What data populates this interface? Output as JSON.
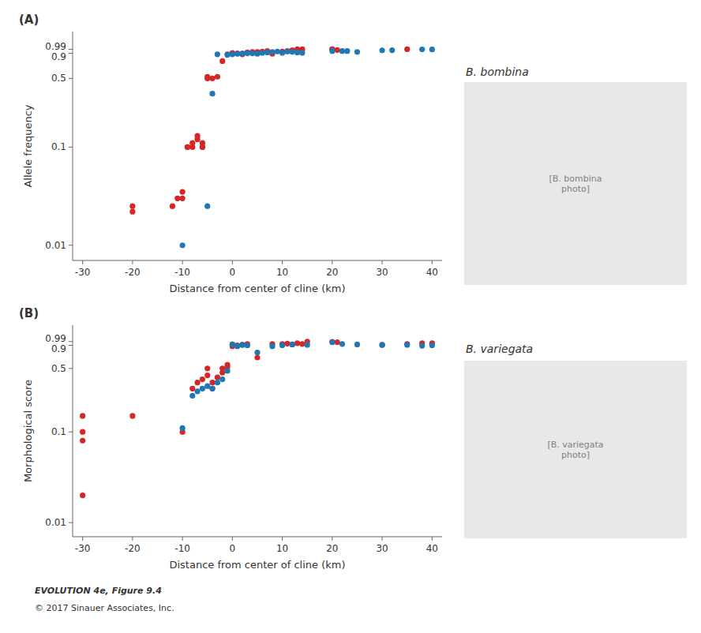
{
  "chart_data": [
    {
      "type": "scatter",
      "title": "(A)",
      "xlabel": "Distance from center of cline (km)",
      "ylabel": "Allele frequency",
      "log": "y",
      "grid": false,
      "xlim": [
        -32,
        42
      ],
      "xticks": [
        -30,
        -20,
        -10,
        0,
        10,
        20,
        30,
        40
      ],
      "ylim": [
        0.007,
        1.5
      ],
      "yticks": [
        0.01,
        0.1,
        0.5,
        0.9,
        0.99
      ],
      "series": [
        {
          "color": "#d62728",
          "x": [
            -20,
            -20,
            -12,
            -11,
            -10,
            -10,
            -9,
            -9,
            -8,
            -8,
            -7,
            -7,
            -6,
            -6,
            -6,
            -5,
            -5,
            -4,
            -3,
            -2,
            -1,
            0,
            0,
            1,
            2,
            3,
            4,
            5,
            6,
            7,
            8,
            10,
            11,
            12,
            13,
            14,
            20,
            20,
            21,
            35
          ],
          "values": [
            0.022,
            0.025,
            0.025,
            0.03,
            0.03,
            0.035,
            0.1,
            0.1,
            0.1,
            0.11,
            0.12,
            0.13,
            0.1,
            0.1,
            0.11,
            0.5,
            0.52,
            0.5,
            0.52,
            0.75,
            0.88,
            0.9,
            0.91,
            0.9,
            0.88,
            0.92,
            0.93,
            0.93,
            0.94,
            0.95,
            0.89,
            0.94,
            0.95,
            0.97,
            0.99,
            0.99,
            0.99,
            0.99,
            0.975,
            0.99
          ]
        },
        {
          "color": "#1f77b4",
          "x": [
            -10,
            -5,
            -4,
            -3,
            -1,
            0,
            1,
            2,
            3,
            4,
            5,
            6,
            7,
            8,
            9,
            10,
            11,
            12,
            13,
            14,
            20,
            22,
            23,
            25,
            30,
            32,
            38,
            40
          ],
          "values": [
            0.01,
            0.025,
            0.35,
            0.88,
            0.87,
            0.88,
            0.89,
            0.9,
            0.9,
            0.9,
            0.89,
            0.91,
            0.92,
            0.93,
            0.94,
            0.91,
            0.94,
            0.93,
            0.92,
            0.91,
            0.95,
            0.95,
            0.95,
            0.93,
            0.965,
            0.97,
            0.988,
            0.985
          ]
        }
      ],
      "annotations": [
        "B. bombina",
        "[B. bombina\nphoto]"
      ]
    },
    {
      "type": "scatter",
      "title": "(B)",
      "xlabel": "Distance from center of cline (km)",
      "ylabel": "Morphological score",
      "log": "y",
      "grid": false,
      "xlim": [
        -32,
        42
      ],
      "xticks": [
        -30,
        -20,
        -10,
        0,
        10,
        20,
        30,
        40
      ],
      "ylim": [
        0.007,
        1.5
      ],
      "yticks": [
        0.01,
        0.1,
        0.5,
        0.9,
        0.99
      ],
      "series": [
        {
          "color": "#d62728",
          "x": [
            -30,
            -30,
            -30,
            -30,
            -20,
            -10,
            -8,
            -7,
            -6,
            -5,
            -5,
            -4,
            -4,
            -3,
            -2,
            -2,
            -1,
            -1,
            0,
            0,
            1,
            2,
            3,
            5,
            8,
            10,
            11,
            12,
            13,
            14,
            15,
            20,
            21,
            30,
            35,
            38,
            40,
            40
          ],
          "values": [
            0.02,
            0.08,
            0.1,
            0.15,
            0.15,
            0.1,
            0.3,
            0.35,
            0.38,
            0.42,
            0.5,
            0.3,
            0.35,
            0.4,
            0.45,
            0.5,
            0.52,
            0.55,
            0.88,
            0.92,
            0.9,
            0.91,
            0.93,
            0.66,
            0.93,
            0.93,
            0.94,
            0.92,
            0.95,
            0.93,
            0.99,
            0.985,
            0.975,
            0.91,
            0.93,
            0.95,
            0.93,
            0.95
          ]
        },
        {
          "color": "#1f77b4",
          "x": [
            -10,
            -8,
            -7,
            -6,
            -5,
            -4,
            -3,
            -2,
            -1,
            0,
            1,
            2,
            3,
            5,
            8,
            10,
            12,
            15,
            20,
            22,
            25,
            30,
            35,
            38,
            40
          ],
          "values": [
            0.11,
            0.25,
            0.28,
            0.3,
            0.32,
            0.3,
            0.35,
            0.38,
            0.47,
            0.92,
            0.88,
            0.91,
            0.9,
            0.75,
            0.88,
            0.9,
            0.92,
            0.91,
            0.97,
            0.93,
            0.92,
            0.91,
            0.91,
            0.89,
            0.9
          ]
        }
      ],
      "annotations": [
        "B. variegata",
        "[B. variegata\nphoto]",
        "EVOLUTION 4e, Figure 9.4",
        "© 2017 Sinauer Associates, Inc."
      ]
    }
  ]
}
